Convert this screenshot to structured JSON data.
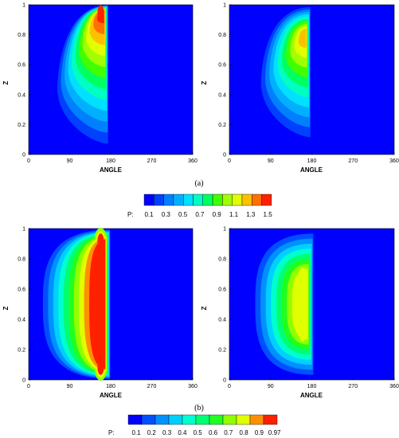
{
  "figure": {
    "panel_label_a": "(a)",
    "panel_label_b": "(b)"
  },
  "chart_data": [
    {
      "type": "heatmap",
      "subplot": "a-left",
      "xlabel": "ANGLE",
      "ylabel": "Z",
      "xlim": [
        0,
        360
      ],
      "ylim": [
        0,
        1
      ],
      "xticks": [
        "0",
        "90",
        "180",
        "270",
        "360"
      ],
      "yticks": [
        "0",
        "0.2",
        "0.4",
        "0.6",
        "0.8",
        "1"
      ],
      "background_color": "#0000FF",
      "colorbar": "a",
      "peaks": [
        {
          "angle": 158,
          "z": 0.95,
          "P": 1.5
        }
      ],
      "hot_region": {
        "angle_min": 55,
        "angle_max": 175,
        "z_min": 0.0,
        "z_max": 1.0
      }
    },
    {
      "type": "heatmap",
      "subplot": "a-right",
      "xlabel": "ANGLE",
      "ylabel": "Z",
      "xlim": [
        0,
        360
      ],
      "ylim": [
        0,
        1
      ],
      "xticks": [
        "0",
        "90",
        "180",
        "270",
        "360"
      ],
      "yticks": [
        "0",
        "0.2",
        "0.4",
        "0.6",
        "0.8",
        "1"
      ],
      "background_color": "#0000FF",
      "colorbar": "a",
      "peaks": [
        {
          "angle": 160,
          "z": 0.78,
          "P": 1.2
        }
      ],
      "hot_region": {
        "angle_min": 60,
        "angle_max": 178,
        "z_min": 0.05,
        "z_max": 1.0
      }
    },
    {
      "type": "heatmap",
      "subplot": "b-left",
      "xlabel": "ANGLE",
      "ylabel": "Z",
      "xlim": [
        0,
        360
      ],
      "ylim": [
        0,
        1
      ],
      "xticks": [
        "0",
        "90",
        "180",
        "270",
        "360"
      ],
      "yticks": [
        "0",
        "0.2",
        "0.4",
        "0.6",
        "0.8",
        "1"
      ],
      "background_color": "#0000FF",
      "colorbar": "b",
      "peaks": [
        {
          "angle": 158,
          "z": 0.92,
          "P": 0.97
        },
        {
          "angle": 158,
          "z": 0.08,
          "P": 0.97
        }
      ],
      "hot_region": {
        "angle_min": 20,
        "angle_max": 180,
        "z_min": 0.0,
        "z_max": 1.0
      }
    },
    {
      "type": "heatmap",
      "subplot": "b-right",
      "xlabel": "ANGLE",
      "ylabel": "Z",
      "xlim": [
        0,
        360
      ],
      "ylim": [
        0,
        1
      ],
      "xticks": [
        "0",
        "90",
        "180",
        "270",
        "360"
      ],
      "yticks": [
        "0",
        "0.2",
        "0.4",
        "0.6",
        "0.8",
        "1"
      ],
      "background_color": "#0000FF",
      "colorbar": "b",
      "peaks": [
        {
          "angle": 160,
          "z": 0.7,
          "P": 0.75
        },
        {
          "angle": 160,
          "z": 0.3,
          "P": 0.75
        }
      ],
      "hot_region": {
        "angle_min": 45,
        "angle_max": 185,
        "z_min": 0.0,
        "z_max": 1.0
      }
    }
  ],
  "colorbars": {
    "a": {
      "title": "P:",
      "labels": [
        "0.1",
        "0.3",
        "0.5",
        "0.7",
        "0.9",
        "1.1",
        "1.3",
        "1.5"
      ],
      "colors": [
        "#0000FF",
        "#0040FF",
        "#0080FF",
        "#00B0FF",
        "#00E0FF",
        "#00FFC0",
        "#00FF60",
        "#40FF00",
        "#A0FF00",
        "#E0FF00",
        "#FFC000",
        "#FF7000",
        "#FF2000"
      ]
    },
    "b": {
      "title": "P:",
      "labels": [
        "0.1",
        "0.2",
        "0.3",
        "0.4",
        "0.5",
        "0.6",
        "0.7",
        "0.8",
        "0.9",
        "0.97"
      ],
      "colors": [
        "#0000FF",
        "#0050FF",
        "#0090FF",
        "#00D0FF",
        "#00FFD0",
        "#00FF70",
        "#20FF20",
        "#90FF00",
        "#E0FF00",
        "#FF9000",
        "#FF2000"
      ]
    }
  }
}
